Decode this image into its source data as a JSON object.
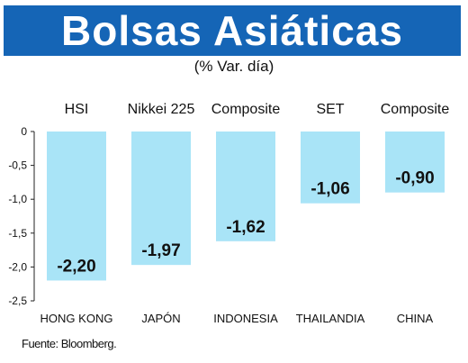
{
  "title": "Bolsas Asiáticas",
  "subtitle": "(% Var. día)",
  "source": "Fuente: Bloomberg.",
  "colors": {
    "banner": "#1565b6",
    "bar": "#a9e4f7",
    "axis": "#222222"
  },
  "chart_data": {
    "type": "bar",
    "indices": [
      "HSI",
      "Nikkei 225",
      "Composite",
      "SET",
      "Composite"
    ],
    "categories": [
      "HONG KONG",
      "JAPÓN",
      "INDONESIA",
      "THAILANDIA",
      "CHINA"
    ],
    "values": [
      -2.2,
      -1.97,
      -1.62,
      -1.06,
      -0.9
    ],
    "value_labels": [
      "-2,20",
      "-1,97",
      "-1,62",
      "-1,06",
      "-0,90"
    ],
    "yticks": [
      0,
      -0.5,
      -1.0,
      -1.5,
      -2.0,
      -2.5
    ],
    "ytick_labels": [
      "0",
      "-0,5",
      "-1,0",
      "-1,5",
      "-2,0",
      "-2,5"
    ],
    "ylim": [
      -2.5,
      0
    ],
    "grid": false,
    "legend": "none"
  }
}
